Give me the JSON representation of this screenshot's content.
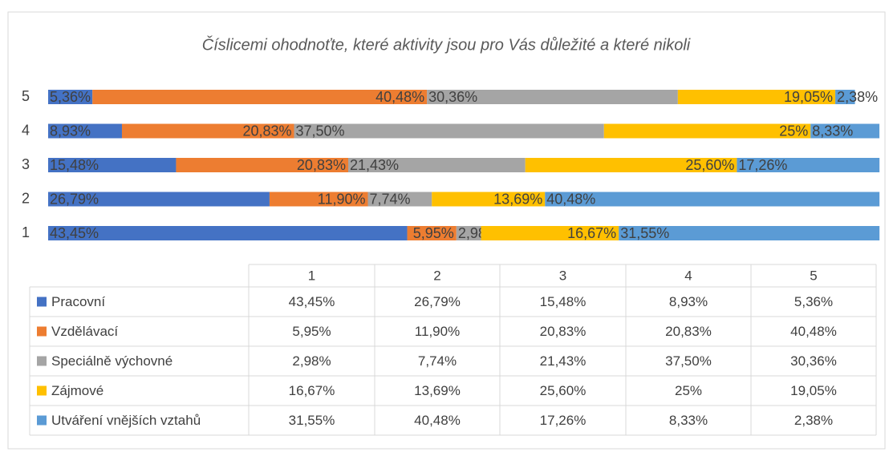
{
  "chart_data": {
    "type": "stacked-bar-horizontal",
    "title": "Číslicemi ohodnoťte, které aktivity jsou pro Vás důležité a které nikoli",
    "categories": [
      "1",
      "2",
      "3",
      "4",
      "5"
    ],
    "xlim": [
      0,
      100
    ],
    "series": [
      {
        "name": "Pracovní",
        "color": "#4472c4",
        "values": [
          43.45,
          26.79,
          15.48,
          8.93,
          5.36
        ],
        "value_labels": [
          "43,45%",
          "26,79%",
          "15,48%",
          "8,93%",
          "5,36%"
        ]
      },
      {
        "name": "Vzdělávací",
        "color": "#ed7d31",
        "values": [
          5.95,
          11.9,
          20.83,
          20.83,
          40.48
        ],
        "value_labels": [
          "5,95%",
          "11,90%",
          "20,83%",
          "20,83%",
          "40,48%"
        ]
      },
      {
        "name": "Speciálně výchovné",
        "color": "#a5a5a5",
        "values": [
          2.98,
          7.74,
          21.43,
          37.5,
          30.36
        ],
        "value_labels": [
          "2,98%",
          "7,74%",
          "21,43%",
          "37,50%",
          "30,36%"
        ]
      },
      {
        "name": "Zájmové",
        "color": "#ffc000",
        "values": [
          16.67,
          13.69,
          25.6,
          25,
          19.05
        ],
        "value_labels": [
          "16,67%",
          "13,69%",
          "25,60%",
          "25%",
          "19,05%"
        ]
      },
      {
        "name": "Utváření vnějších vztahů",
        "color": "#5b9bd5",
        "values": [
          31.55,
          40.48,
          17.26,
          8.33,
          2.38
        ],
        "value_labels": [
          "31,55%",
          "40,48%",
          "17,26%",
          "8,33%",
          "2,38%"
        ]
      }
    ]
  }
}
